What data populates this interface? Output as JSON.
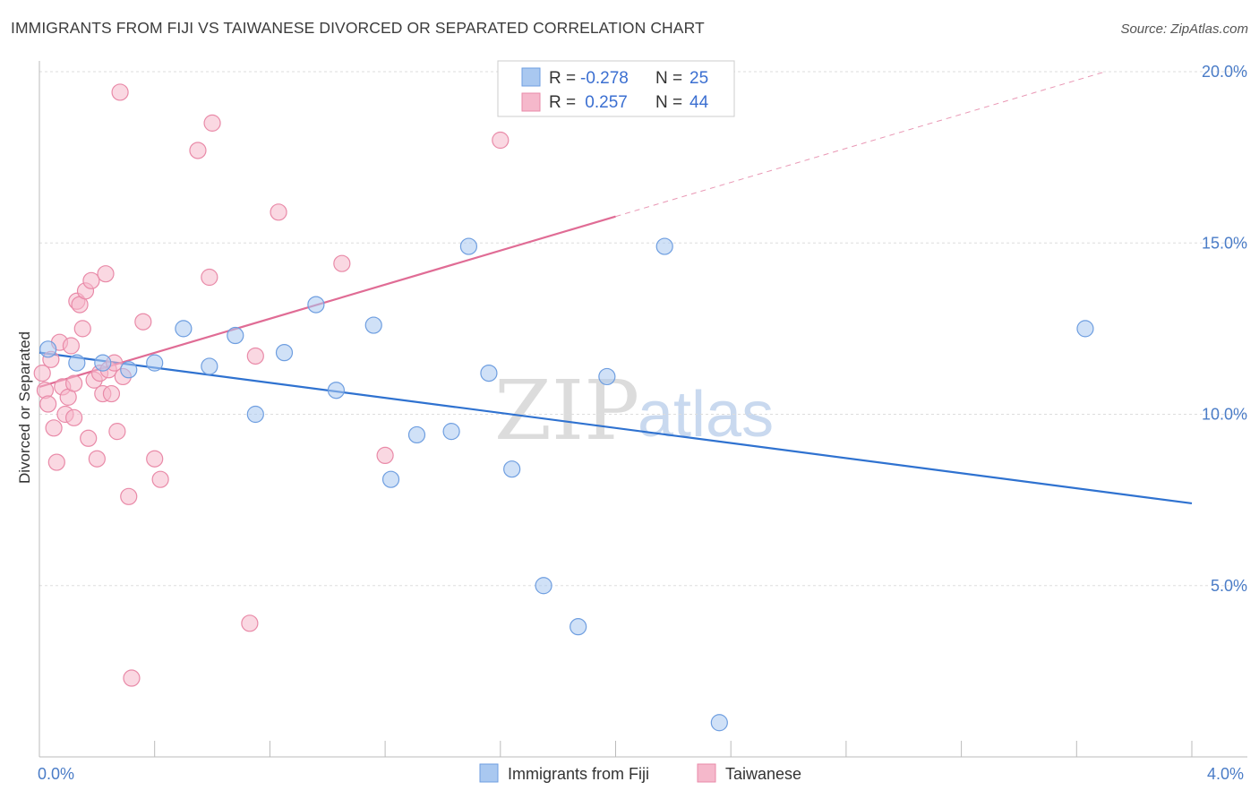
{
  "title": "IMMIGRANTS FROM FIJI VS TAIWANESE DIVORCED OR SEPARATED CORRELATION CHART",
  "source": "Source: ZipAtlas.com",
  "watermark": {
    "part1": "ZIP",
    "part2": "atlas"
  },
  "colors": {
    "fiji_fill": "#a9c8f0",
    "fiji_stroke": "#6e9ee0",
    "fiji_line": "#2f72d0",
    "taiwan_fill": "#f5b8cb",
    "taiwan_stroke": "#e98aa8",
    "taiwan_line": "#e06c95",
    "grid": "#dddddd",
    "axis": "#bbbbbb"
  },
  "legend": {
    "rows": [
      {
        "r_label": "R = ",
        "r_value": "-0.278",
        "n_label": "N = ",
        "n_value": "25"
      },
      {
        "r_label": "R = ",
        "r_value": " 0.257",
        "n_label": "N = ",
        "n_value": "44"
      }
    ]
  },
  "chart_data": {
    "type": "scatter",
    "title": "IMMIGRANTS FROM FIJI VS TAIWANESE DIVORCED OR SEPARATED CORRELATION CHART",
    "xlabel": "",
    "ylabel": "Divorced or Separated",
    "xlim": [
      0,
      4.0
    ],
    "ylim": [
      0,
      20.0
    ],
    "x_tick_labels": [
      "0.0%",
      "4.0%"
    ],
    "y_ticks": [
      5,
      10,
      15,
      20
    ],
    "y_tick_labels": [
      "5.0%",
      "10.0%",
      "15.0%",
      "20.0%"
    ],
    "grid": true,
    "series": [
      {
        "name": "Immigrants from Fiji",
        "points": [
          [
            0.03,
            11.9
          ],
          [
            0.13,
            11.5
          ],
          [
            0.22,
            11.5
          ],
          [
            0.31,
            11.3
          ],
          [
            0.4,
            11.5
          ],
          [
            0.5,
            12.5
          ],
          [
            0.59,
            11.4
          ],
          [
            0.68,
            12.3
          ],
          [
            0.75,
            10.0
          ],
          [
            0.85,
            11.8
          ],
          [
            0.96,
            13.2
          ],
          [
            1.03,
            10.7
          ],
          [
            1.16,
            12.6
          ],
          [
            1.22,
            8.1
          ],
          [
            1.31,
            9.4
          ],
          [
            1.43,
            9.5
          ],
          [
            1.49,
            14.9
          ],
          [
            1.56,
            11.2
          ],
          [
            1.64,
            8.4
          ],
          [
            1.75,
            5.0
          ],
          [
            1.87,
            3.8
          ],
          [
            1.97,
            11.1
          ],
          [
            2.17,
            14.9
          ],
          [
            2.36,
            1.0
          ],
          [
            3.63,
            12.5
          ]
        ],
        "trend": {
          "x0": 0.0,
          "y0": 11.8,
          "x1": 4.0,
          "y1": 7.4,
          "dashed_from": null
        }
      },
      {
        "name": "Taiwanese",
        "points": [
          [
            0.01,
            11.2
          ],
          [
            0.02,
            10.7
          ],
          [
            0.03,
            10.3
          ],
          [
            0.04,
            11.6
          ],
          [
            0.05,
            9.6
          ],
          [
            0.06,
            8.6
          ],
          [
            0.07,
            12.1
          ],
          [
            0.08,
            10.8
          ],
          [
            0.09,
            10.0
          ],
          [
            0.1,
            10.5
          ],
          [
            0.11,
            12.0
          ],
          [
            0.12,
            9.9
          ],
          [
            0.13,
            13.3
          ],
          [
            0.14,
            13.2
          ],
          [
            0.15,
            12.5
          ],
          [
            0.16,
            13.6
          ],
          [
            0.17,
            9.3
          ],
          [
            0.18,
            13.9
          ],
          [
            0.19,
            11.0
          ],
          [
            0.2,
            8.7
          ],
          [
            0.21,
            11.2
          ],
          [
            0.22,
            10.6
          ],
          [
            0.23,
            14.1
          ],
          [
            0.24,
            11.3
          ],
          [
            0.25,
            10.6
          ],
          [
            0.26,
            11.5
          ],
          [
            0.27,
            9.5
          ],
          [
            0.28,
            19.4
          ],
          [
            0.29,
            11.1
          ],
          [
            0.31,
            7.6
          ],
          [
            0.32,
            2.3
          ],
          [
            0.36,
            12.7
          ],
          [
            0.4,
            8.7
          ],
          [
            0.42,
            8.1
          ],
          [
            0.55,
            17.7
          ],
          [
            0.59,
            14.0
          ],
          [
            0.6,
            18.5
          ],
          [
            0.73,
            3.9
          ],
          [
            0.75,
            11.7
          ],
          [
            0.83,
            15.9
          ],
          [
            1.05,
            14.4
          ],
          [
            1.2,
            8.8
          ],
          [
            1.6,
            18.0
          ],
          [
            0.12,
            10.9
          ]
        ],
        "trend": {
          "x0": 0.0,
          "y0": 10.8,
          "x1": 3.7,
          "y1": 20.0,
          "dashed_from": 2.0
        }
      }
    ]
  }
}
